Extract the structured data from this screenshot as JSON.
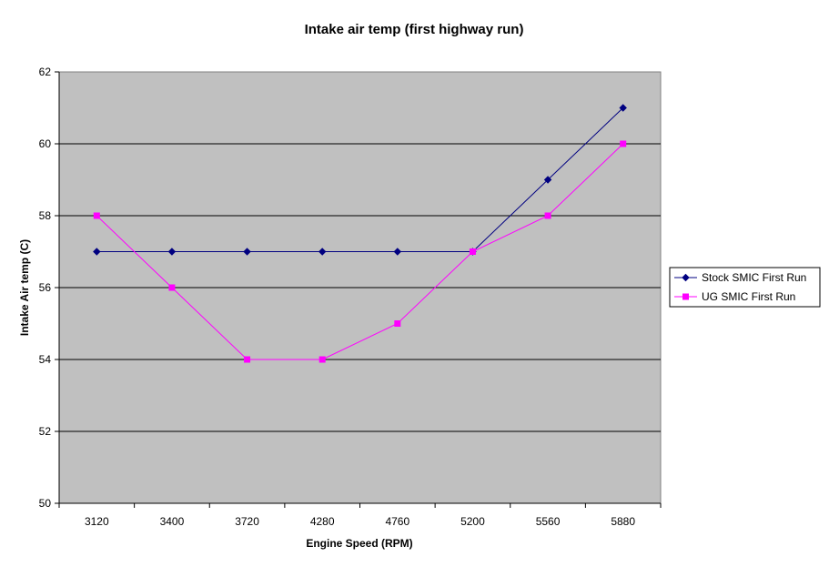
{
  "chart_data": {
    "type": "line",
    "title": "Intake air temp (first highway run)",
    "xlabel": "Engine Speed (RPM)",
    "ylabel": "Intake Air temp (C)",
    "categories": [
      "3120",
      "3400",
      "3720",
      "4280",
      "4760",
      "5200",
      "5560",
      "5880"
    ],
    "ylim": [
      50,
      62
    ],
    "yticks": [
      50,
      52,
      54,
      56,
      58,
      60,
      62
    ],
    "grid": true,
    "legend_position": "right",
    "plot_background": "#c0c0c0",
    "series": [
      {
        "name": "Stock SMIC First Run",
        "values": [
          57,
          57,
          57,
          57,
          57,
          57,
          59,
          61
        ],
        "color": "#000080",
        "marker": "diamond"
      },
      {
        "name": "UG SMIC First Run",
        "values": [
          58,
          56,
          54,
          54,
          55,
          57,
          58,
          60
        ],
        "color": "#ff00ff",
        "marker": "square"
      }
    ]
  }
}
